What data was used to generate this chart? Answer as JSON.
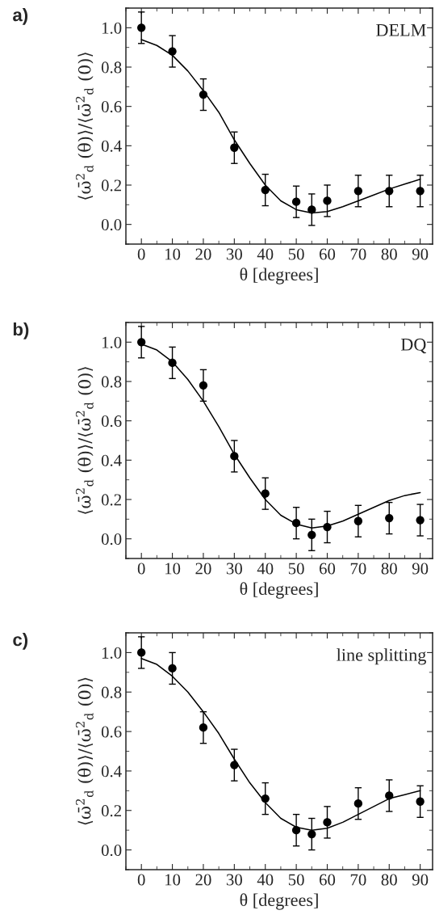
{
  "chart_data": [
    {
      "type": "scatter",
      "title": "a)",
      "xlabel": "θ [degrees]",
      "ylabel": "⟨ω̄$^{2}$$_{d}$ (θ)⟩/⟨ω̄$^{2}$$_{d}$ (0)⟩",
      "annotations": [
        "DELM"
      ],
      "xlim": [
        -5,
        94
      ],
      "ylim": [
        -0.1,
        1.1
      ],
      "xticks": [
        0,
        10,
        20,
        30,
        40,
        50,
        60,
        70,
        80,
        90
      ],
      "yticks": [
        {
          "value": 0,
          "label": "0.0"
        },
        {
          "value": 0.2,
          "label": "0.2"
        },
        {
          "value": 0.4,
          "label": "0.4"
        },
        {
          "value": 0.6,
          "label": "0.6"
        },
        {
          "value": 0.8,
          "label": "0.8"
        },
        {
          "value": 1.0,
          "label": "1.0"
        }
      ],
      "grid": false,
      "legend": false,
      "line_style": "solid",
      "series": [
        {
          "marker": "circle",
          "color": "#000000",
          "x": [
            0,
            10,
            20,
            30,
            40,
            50,
            55,
            60,
            70,
            80,
            90
          ],
          "values": [
            1.0,
            0.88,
            0.66,
            0.39,
            0.175,
            0.115,
            0.075,
            0.12,
            0.17,
            0.17,
            0.17
          ],
          "errors": [
            0.08,
            0.08,
            0.08,
            0.08,
            0.08,
            0.08,
            0.08,
            0.08,
            0.08,
            0.08,
            0.08
          ]
        },
        {
          "type": "line",
          "color": "#000000",
          "x": [
            0,
            5,
            10,
            15,
            20,
            25,
            30,
            35,
            40,
            45,
            50,
            55,
            60,
            65,
            70,
            75,
            80,
            85,
            90
          ],
          "values": [
            0.94,
            0.91,
            0.86,
            0.78,
            0.68,
            0.57,
            0.43,
            0.31,
            0.2,
            0.12,
            0.075,
            0.058,
            0.065,
            0.09,
            0.12,
            0.15,
            0.18,
            0.205,
            0.23
          ]
        }
      ]
    },
    {
      "type": "scatter",
      "title": "b)",
      "xlabel": "θ [degrees]",
      "ylabel": "⟨ω̄$^{2}$$_{d}$ (θ)⟩/⟨ω̄$^{2}$$_{d}$ (0)⟩",
      "annotations": [
        "DQ"
      ],
      "xlim": [
        -5,
        94
      ],
      "ylim": [
        -0.1,
        1.1
      ],
      "xticks": [
        0,
        10,
        20,
        30,
        40,
        50,
        60,
        70,
        80,
        90
      ],
      "yticks": [
        {
          "value": 0,
          "label": "0.0"
        },
        {
          "value": 0.2,
          "label": "0.2"
        },
        {
          "value": 0.4,
          "label": "0.4"
        },
        {
          "value": 0.6,
          "label": "0.6"
        },
        {
          "value": 0.8,
          "label": "0.8"
        },
        {
          "value": 1.0,
          "label": "1.0"
        }
      ],
      "grid": false,
      "legend": false,
      "line_style": "solid",
      "series": [
        {
          "marker": "circle",
          "color": "#000000",
          "x": [
            0,
            10,
            20,
            30,
            40,
            50,
            55,
            60,
            70,
            80,
            90
          ],
          "values": [
            1.0,
            0.895,
            0.78,
            0.42,
            0.23,
            0.08,
            0.02,
            0.06,
            0.09,
            0.105,
            0.095
          ],
          "errors": [
            0.08,
            0.08,
            0.08,
            0.08,
            0.08,
            0.08,
            0.08,
            0.08,
            0.08,
            0.08,
            0.08
          ]
        },
        {
          "type": "line",
          "color": "#000000",
          "x": [
            0,
            5,
            10,
            15,
            20,
            25,
            30,
            35,
            40,
            45,
            50,
            55,
            60,
            65,
            70,
            75,
            80,
            85,
            90
          ],
          "values": [
            0.99,
            0.96,
            0.9,
            0.81,
            0.7,
            0.57,
            0.43,
            0.31,
            0.2,
            0.12,
            0.075,
            0.055,
            0.065,
            0.09,
            0.125,
            0.16,
            0.195,
            0.22,
            0.235
          ]
        }
      ]
    },
    {
      "type": "scatter",
      "title": "c)",
      "xlabel": "θ [degrees]",
      "ylabel": "⟨ω̄$^{2}$$_{d}$ (θ)⟩/⟨ω̄$^{2}$$_{d}$ (0)⟩",
      "annotations": [
        "line splitting"
      ],
      "xlim": [
        -5,
        94
      ],
      "ylim": [
        -0.1,
        1.1
      ],
      "xticks": [
        0,
        10,
        20,
        30,
        40,
        50,
        60,
        70,
        80,
        90
      ],
      "yticks": [
        {
          "value": 0,
          "label": "0.0"
        },
        {
          "value": 0.2,
          "label": "0.2"
        },
        {
          "value": 0.4,
          "label": "0.4"
        },
        {
          "value": 0.6,
          "label": "0.6"
        },
        {
          "value": 0.8,
          "label": "0.8"
        },
        {
          "value": 1.0,
          "label": "1.0"
        }
      ],
      "grid": false,
      "legend": false,
      "line_style": "solid",
      "series": [
        {
          "marker": "circle",
          "color": "#000000",
          "x": [
            0,
            10,
            20,
            30,
            40,
            50,
            55,
            60,
            70,
            80,
            90
          ],
          "values": [
            1.0,
            0.92,
            0.62,
            0.43,
            0.26,
            0.1,
            0.08,
            0.14,
            0.235,
            0.275,
            0.245
          ],
          "errors": [
            0.08,
            0.08,
            0.08,
            0.08,
            0.08,
            0.08,
            0.08,
            0.08,
            0.08,
            0.08,
            0.08
          ]
        },
        {
          "type": "line",
          "color": "#000000",
          "x": [
            0,
            5,
            10,
            15,
            20,
            25,
            30,
            35,
            40,
            45,
            50,
            55,
            60,
            65,
            70,
            75,
            80,
            85,
            90
          ],
          "values": [
            0.97,
            0.94,
            0.88,
            0.8,
            0.7,
            0.59,
            0.46,
            0.34,
            0.24,
            0.16,
            0.115,
            0.1,
            0.11,
            0.14,
            0.18,
            0.22,
            0.26,
            0.28,
            0.3
          ]
        }
      ]
    }
  ]
}
